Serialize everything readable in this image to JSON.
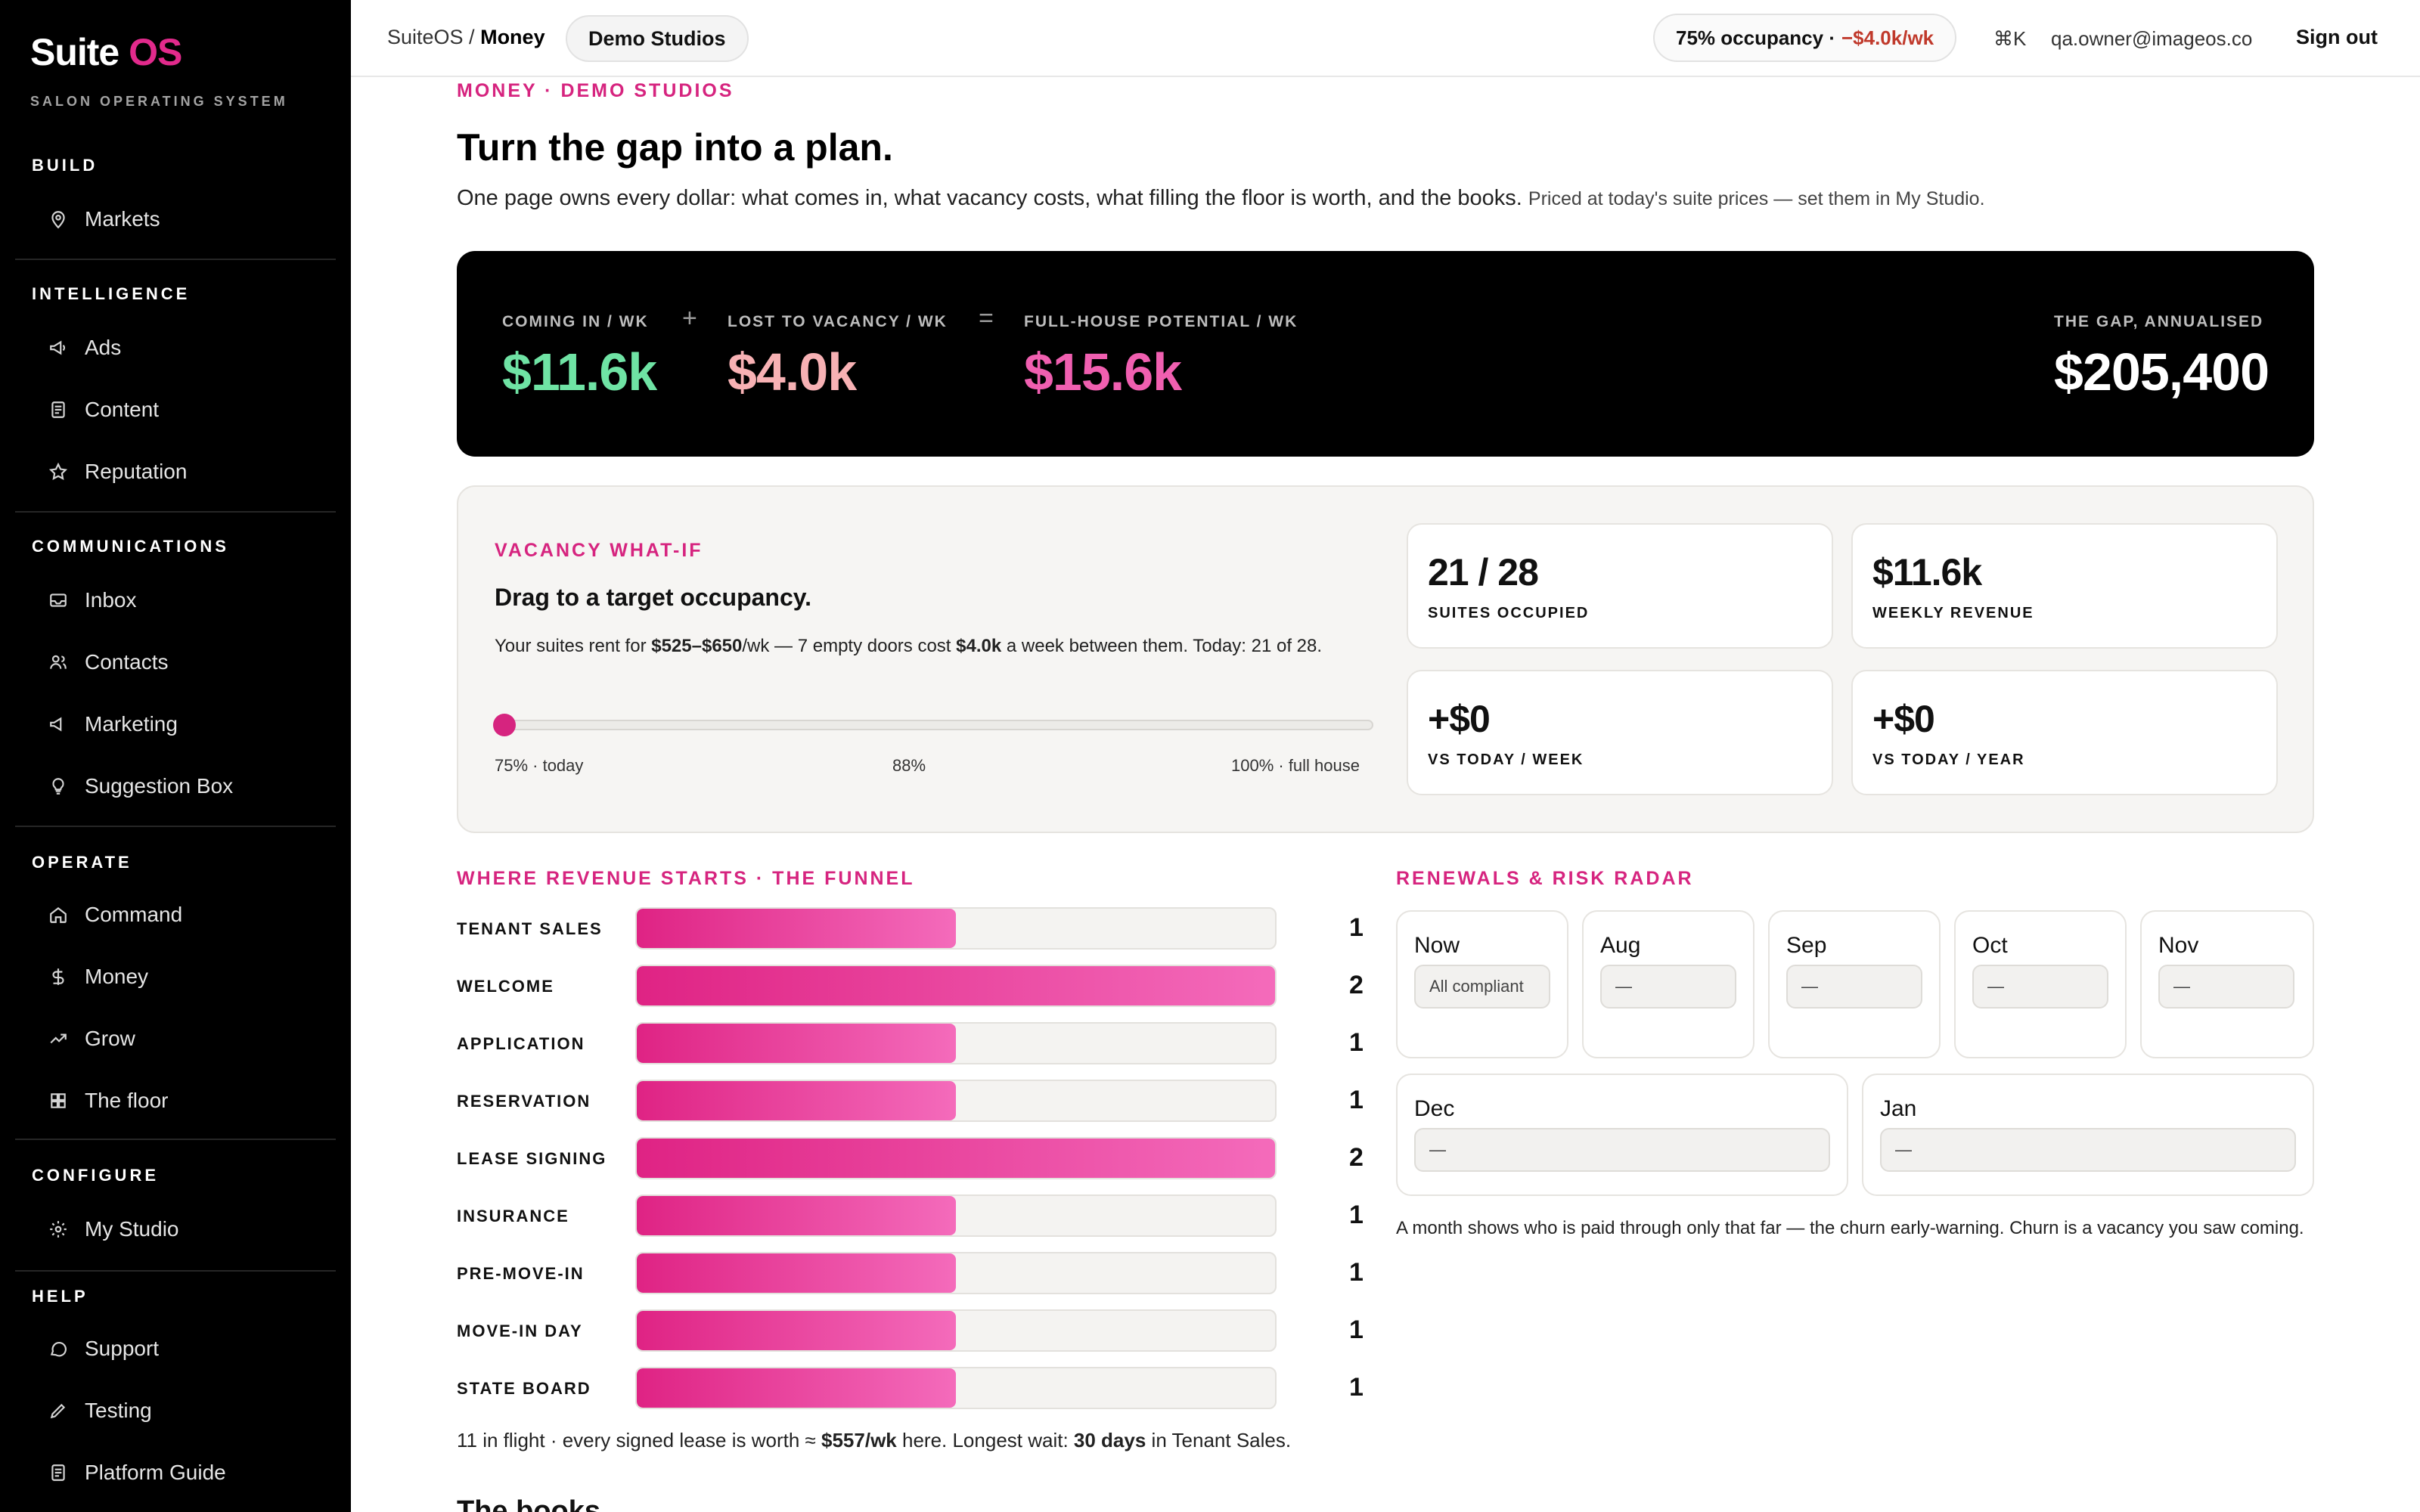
{
  "brand": {
    "name": "Suite",
    "accent": "OS",
    "tagline": "SALON OPERATING SYSTEM"
  },
  "sidebar": {
    "sections": [
      {
        "title": "BUILD",
        "items": [
          {
            "label": "Markets",
            "icon": "map-pin-icon"
          }
        ]
      },
      {
        "title": "INTELLIGENCE",
        "items": [
          {
            "label": "Ads",
            "icon": "megaphone-icon"
          },
          {
            "label": "Content",
            "icon": "document-icon"
          },
          {
            "label": "Reputation",
            "icon": "star-icon"
          }
        ]
      },
      {
        "title": "COMMUNICATIONS",
        "items": [
          {
            "label": "Inbox",
            "icon": "inbox-icon"
          },
          {
            "label": "Contacts",
            "icon": "users-icon"
          },
          {
            "label": "Marketing",
            "icon": "megaphone-icon"
          },
          {
            "label": "Suggestion Box",
            "icon": "lightbulb-icon"
          }
        ]
      },
      {
        "title": "OPERATE",
        "items": [
          {
            "label": "Command",
            "icon": "home-icon"
          },
          {
            "label": "Money",
            "icon": "dollar-icon"
          },
          {
            "label": "Grow",
            "icon": "trend-icon"
          },
          {
            "label": "The floor",
            "icon": "grid-icon"
          }
        ]
      },
      {
        "title": "CONFIGURE",
        "items": [
          {
            "label": "My Studio",
            "icon": "gear-icon"
          }
        ]
      },
      {
        "title": "HELP",
        "items": [
          {
            "label": "Support",
            "icon": "chat-icon"
          },
          {
            "label": "Testing",
            "icon": "pencil-icon"
          },
          {
            "label": "Platform Guide",
            "icon": "document-icon"
          }
        ]
      }
    ]
  },
  "topbar": {
    "crumb_root": "SuiteOS /",
    "crumb_current": "Money",
    "studio": "Demo Studios",
    "occupancy": "75% occupancy ·",
    "occupancy_loss": "−$4.0k/wk",
    "shortcut": "⌘K",
    "email": "qa.owner@imageos.co",
    "signout": "Sign out"
  },
  "page": {
    "eyebrow": "MONEY · DEMO STUDIOS",
    "title": "Turn the gap into a plan.",
    "desc": "One page owns every dollar: what comes in, what vacancy costs, what filling the floor is worth, and the books.",
    "desc_small": "Priced at today's suite prices — set them in My Studio."
  },
  "hero": {
    "coming_in_label": "COMING IN / WK",
    "coming_in": "$11.6k",
    "plus": "+",
    "lost_label": "LOST TO VACANCY / WK",
    "lost": "$4.0k",
    "equals": "=",
    "potential_label": "FULL-HOUSE POTENTIAL / WK",
    "potential": "$15.6k",
    "gap_label": "THE GAP, ANNUALISED",
    "gap": "$205,400",
    "colors": {
      "coming_in": "#6fe3a4",
      "lost": "#f7b1b4",
      "potential": "#f05fb0"
    }
  },
  "whatif": {
    "eyebrow": "VACANCY WHAT-IF",
    "heading": "Drag to a target occupancy.",
    "desc_1": "Your suites rent for ",
    "desc_range": "$525–$650",
    "desc_2": "/wk — 7 empty doors cost ",
    "desc_cost": "$4.0k",
    "desc_3": " a week between them. Today: 21 of 28.",
    "slider_value_pct": 75,
    "label_left": "75% · today",
    "label_mid": "88%",
    "label_right": "100% · full house",
    "cards": [
      {
        "value": "21 / 28",
        "label": "SUITES OCCUPIED"
      },
      {
        "value": "$11.6k",
        "label": "WEEKLY REVENUE"
      },
      {
        "value": "+$0",
        "label": "VS TODAY / WEEK"
      },
      {
        "value": "+$0",
        "label": "VS TODAY / YEAR"
      }
    ]
  },
  "funnel": {
    "eyebrow": "WHERE REVENUE STARTS · THE FUNNEL",
    "max": 2,
    "stages": [
      {
        "name": "TENANT SALES",
        "count": 1
      },
      {
        "name": "WELCOME",
        "count": 2
      },
      {
        "name": "APPLICATION",
        "count": 1
      },
      {
        "name": "RESERVATION",
        "count": 1
      },
      {
        "name": "LEASE SIGNING",
        "count": 2
      },
      {
        "name": "INSURANCE",
        "count": 1
      },
      {
        "name": "PRE-MOVE-IN",
        "count": 1
      },
      {
        "name": "MOVE-IN DAY",
        "count": 1
      },
      {
        "name": "STATE BOARD",
        "count": 1
      }
    ],
    "note_1": "11 in flight · every signed lease is worth ≈ ",
    "note_worth": "$557/wk",
    "note_2": " here. Longest wait: ",
    "note_wait": "30 days",
    "note_3": " in Tenant Sales."
  },
  "radar": {
    "eyebrow": "RENEWALS & RISK RADAR",
    "months": [
      {
        "month": "Now",
        "value": "All compliant"
      },
      {
        "month": "Aug",
        "value": "—"
      },
      {
        "month": "Sep",
        "value": "—"
      },
      {
        "month": "Oct",
        "value": "—"
      },
      {
        "month": "Nov",
        "value": "—"
      },
      {
        "month": "Dec",
        "value": "—"
      },
      {
        "month": "Jan",
        "value": "—"
      }
    ],
    "note": "A month shows who is paid through only that far — the churn early-warning. Churn is a vacancy you saw coming."
  },
  "books": {
    "title": "The books"
  }
}
